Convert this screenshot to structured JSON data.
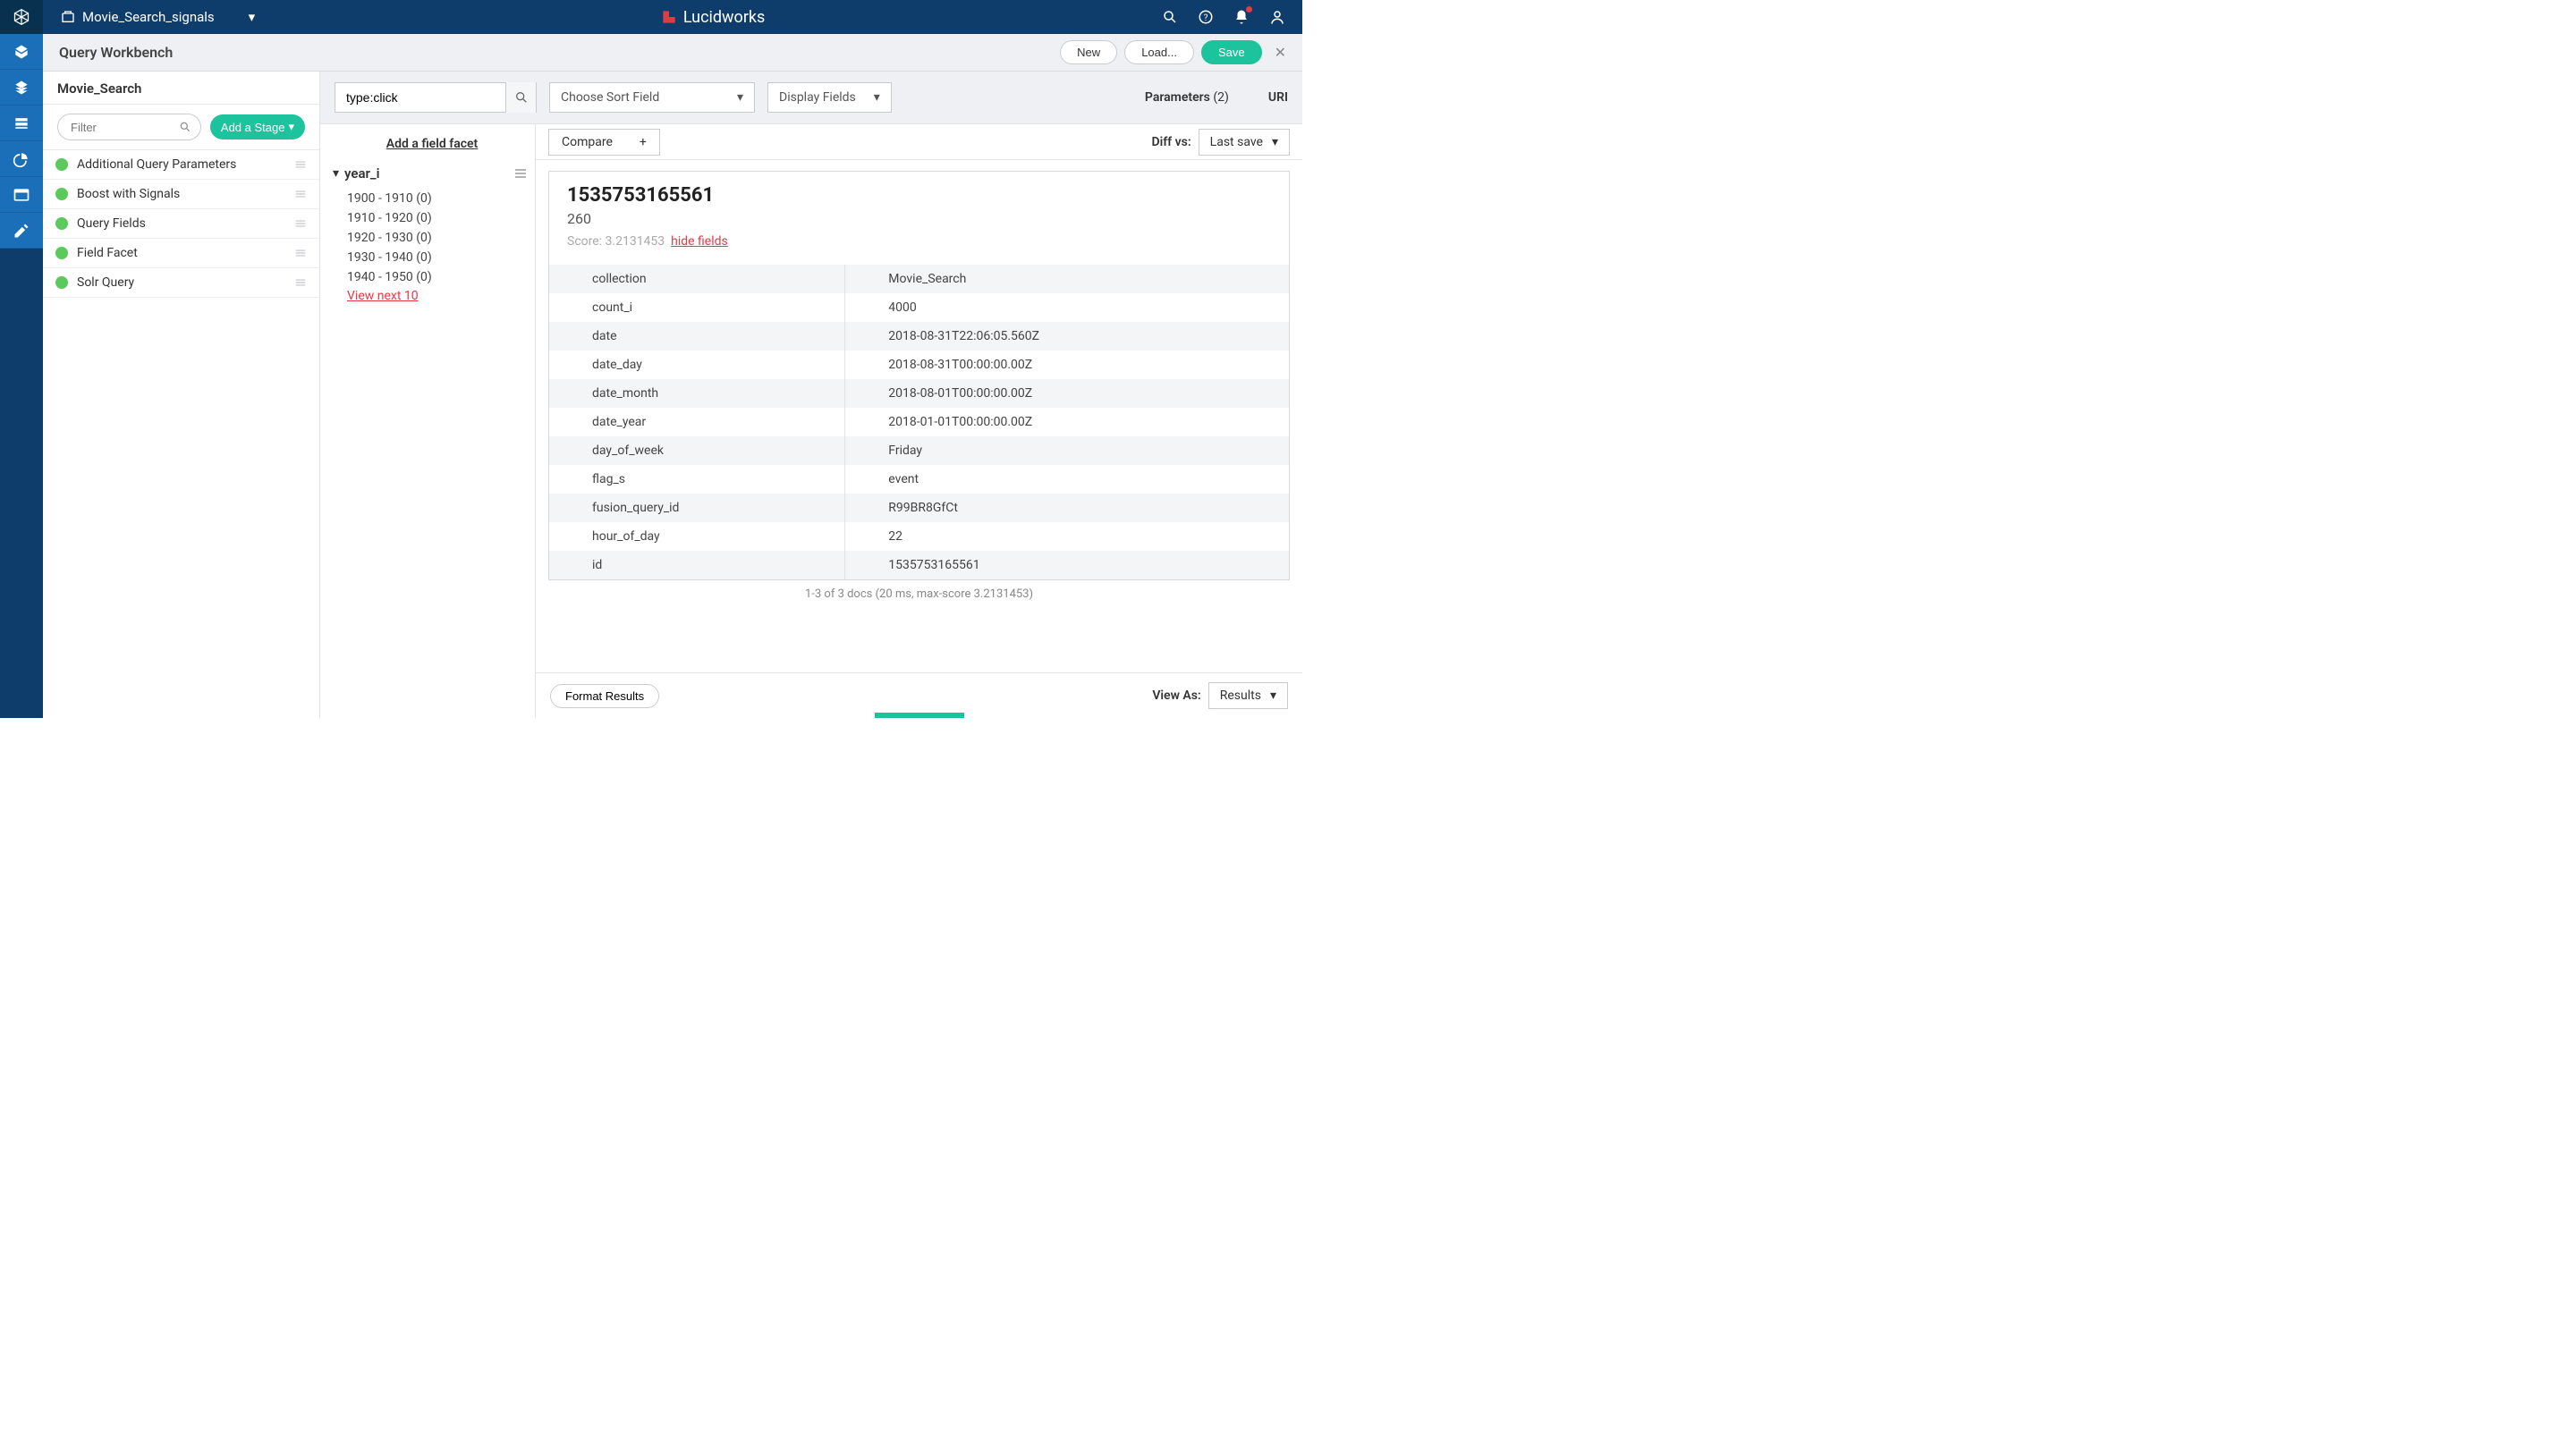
{
  "colors": {
    "topbar_bg": "#0e3d6b",
    "rail_bg": "#1a6fb8",
    "accent": "#1dc39d",
    "link_red": "#e63946",
    "stage_green": "#5bc95b"
  },
  "topbar": {
    "collection_name": "Movie_Search_signals",
    "brand": "Lucidworks"
  },
  "subhead": {
    "title": "Query Workbench",
    "new_btn": "New",
    "load_btn": "Load...",
    "save_btn": "Save"
  },
  "pipeline": {
    "name": "Movie_Search",
    "filter_placeholder": "Filter",
    "add_stage_btn": "Add a Stage",
    "stages": [
      "Additional Query Parameters",
      "Boost with Signals",
      "Query Fields",
      "Field Facet",
      "Solr Query"
    ]
  },
  "query": {
    "search_value": "type:click",
    "sort_placeholder": "Choose Sort Field",
    "display_fields_label": "Display Fields",
    "parameters_label": "Parameters",
    "parameters_count": "(2)",
    "uri_label": "URI"
  },
  "facets": {
    "add_label": "Add a field facet",
    "group_name": "year_i",
    "items": [
      "1900 - 1910 (0)",
      "1910 - 1920 (0)",
      "1920 - 1930 (0)",
      "1930 - 1940 (0)",
      "1940 - 1950 (0)"
    ],
    "view_next": "View next 10"
  },
  "results_toolbar": {
    "compare": "Compare",
    "diff_label": "Diff vs:",
    "last_save": "Last save"
  },
  "result": {
    "id": "1535753165561",
    "sub": "260",
    "score_label": "Score: 3.2131453",
    "hide_fields": "hide fields",
    "fields": [
      {
        "k": "collection",
        "v": "Movie_Search"
      },
      {
        "k": "count_i",
        "v": "4000"
      },
      {
        "k": "date",
        "v": "2018-08-31T22:06:05.560Z"
      },
      {
        "k": "date_day",
        "v": "2018-08-31T00:00:00.00Z"
      },
      {
        "k": "date_month",
        "v": "2018-08-01T00:00:00.00Z"
      },
      {
        "k": "date_year",
        "v": "2018-01-01T00:00:00.00Z"
      },
      {
        "k": "day_of_week",
        "v": "Friday"
      },
      {
        "k": "flag_s",
        "v": "event"
      },
      {
        "k": "fusion_query_id",
        "v": "R99BR8GfCt"
      },
      {
        "k": "hour_of_day",
        "v": "22"
      },
      {
        "k": "id",
        "v": "1535753165561"
      }
    ]
  },
  "results_footer": "1-3 of 3 docs (20 ms, max-score 3.2131453)",
  "bottom": {
    "format_results": "Format Results",
    "view_as_label": "View As:",
    "view_as_value": "Results"
  }
}
